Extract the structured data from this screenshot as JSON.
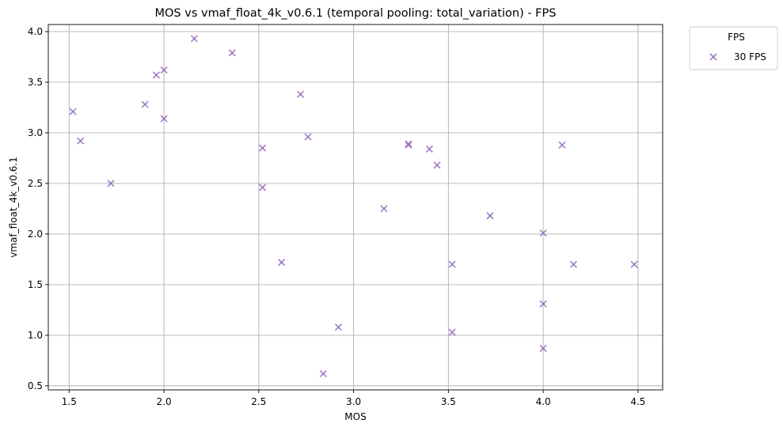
{
  "chart_data": {
    "type": "scatter",
    "title": "MOS vs vmaf_float_4k_v0.6.1 (temporal pooling: total_variation) - FPS",
    "xlabel": "MOS",
    "ylabel": "vmaf_float_4k_v0.6.1",
    "xlim": [
      1.39,
      4.63
    ],
    "ylim": [
      0.46,
      4.07
    ],
    "xticks": [
      1.5,
      2.0,
      2.5,
      3.0,
      3.5,
      4.0,
      4.5
    ],
    "yticks": [
      0.5,
      1.0,
      1.5,
      2.0,
      2.5,
      3.0,
      3.5,
      4.0
    ],
    "xtick_labels": [
      "1.5",
      "2.0",
      "2.5",
      "3.0",
      "3.5",
      "4.0",
      "4.5"
    ],
    "ytick_labels": [
      "0.5",
      "1.0",
      "1.5",
      "2.0",
      "2.5",
      "3.0",
      "3.5",
      "4.0"
    ],
    "grid": true,
    "legend": {
      "title": "FPS",
      "placement": "outside-top-right",
      "entries": [
        "30 FPS"
      ]
    },
    "series": [
      {
        "name": "30 FPS",
        "marker": "x",
        "color": "#9467bd",
        "points": [
          [
            1.52,
            3.21
          ],
          [
            1.56,
            2.92
          ],
          [
            1.72,
            2.5
          ],
          [
            1.9,
            3.28
          ],
          [
            1.96,
            3.57
          ],
          [
            2.0,
            3.62
          ],
          [
            2.0,
            3.14
          ],
          [
            2.16,
            3.93
          ],
          [
            2.36,
            3.79
          ],
          [
            2.52,
            2.85
          ],
          [
            2.52,
            2.46
          ],
          [
            2.62,
            1.72
          ],
          [
            2.72,
            3.38
          ],
          [
            2.76,
            2.96
          ],
          [
            2.84,
            0.62
          ],
          [
            2.92,
            1.08
          ],
          [
            3.16,
            2.25
          ],
          [
            3.29,
            2.89
          ],
          [
            3.29,
            2.88
          ],
          [
            3.4,
            2.84
          ],
          [
            3.44,
            2.68
          ],
          [
            3.52,
            1.7
          ],
          [
            3.52,
            1.03
          ],
          [
            3.72,
            2.18
          ],
          [
            4.0,
            2.01
          ],
          [
            4.0,
            1.31
          ],
          [
            4.0,
            0.87
          ],
          [
            4.1,
            2.88
          ],
          [
            4.16,
            1.7
          ],
          [
            4.48,
            1.7
          ]
        ]
      }
    ]
  }
}
